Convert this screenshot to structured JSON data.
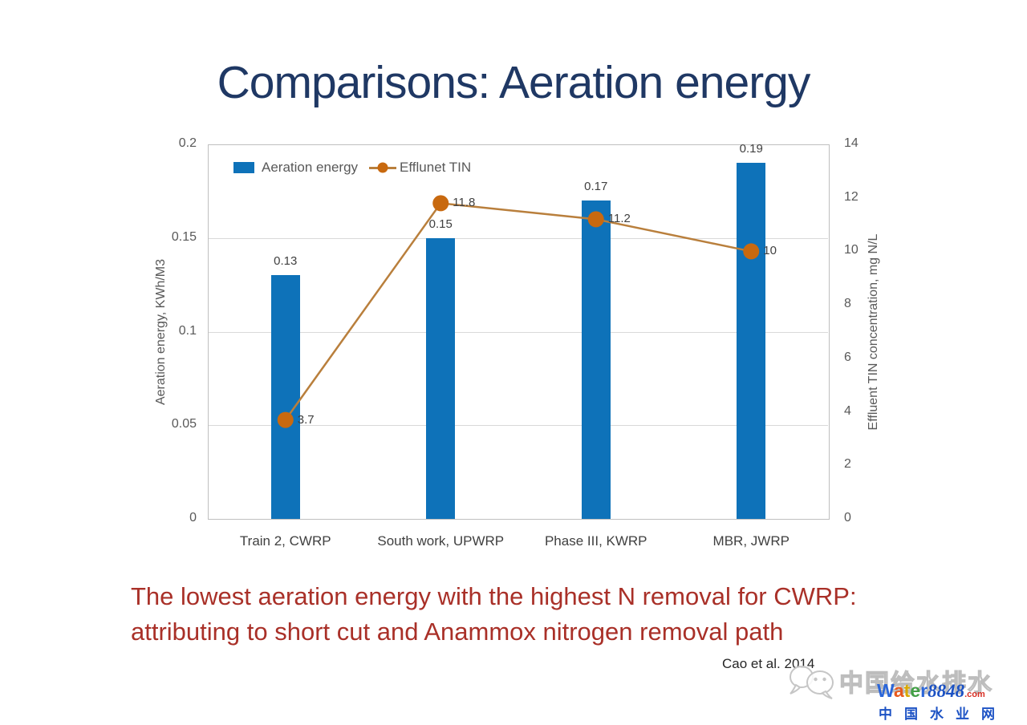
{
  "slide": {
    "title": "Comparisons: Aeration energy",
    "caption": {
      "line1": "The lowest aeration energy with the highest N removal for CWRP:",
      "line2": "attributing to short cut and Anammox nitrogen removal path"
    },
    "citation": "Cao et al. 2014"
  },
  "chart_data": {
    "type": "bar",
    "subtype": "combo bar + line with dual y-axes",
    "categories": [
      "Train 2, CWRP",
      "South work, UPWRP",
      "Phase III, KWRP",
      "MBR, JWRP"
    ],
    "series": [
      {
        "name": "Aeration energy",
        "type": "bar",
        "axis": "left",
        "values": [
          0.13,
          0.15,
          0.17,
          0.19
        ],
        "labels": [
          "0.13",
          "0.15",
          "0.17",
          "0.19"
        ],
        "color": "#0E72B9"
      },
      {
        "name": "Efflunet TIN",
        "type": "line",
        "axis": "right",
        "values": [
          3.7,
          11.8,
          11.2,
          10
        ],
        "labels": [
          "3.7",
          "11.8",
          "11.2",
          "10"
        ],
        "color": "#C8690F",
        "line_color": "#B97F3C"
      }
    ],
    "left_axis": {
      "title": "Aeration energy, KWh/M3",
      "min": 0,
      "max": 0.2,
      "tick_labels": [
        "0",
        "0.05",
        "0.1",
        "0.15",
        "0.2"
      ]
    },
    "right_axis": {
      "title": "Effluent TIN concentration, mg N/L",
      "min": 0,
      "max": 14,
      "tick_labels": [
        "0",
        "2",
        "4",
        "6",
        "8",
        "10",
        "12",
        "14"
      ]
    },
    "legend": [
      "Aeration energy",
      "Efflunet TIN"
    ],
    "legend_position": "top-left inside plot",
    "grid": true,
    "colors": {
      "grid": "#D9D9D9",
      "plot_border": "#BFBFBF",
      "tick_text": "#595959",
      "value_text": "#404040",
      "title_text": "#1F3864",
      "caption_text": "#A93028"
    }
  },
  "watermark": {
    "bubble_icon": "wechat-bubbles-icon",
    "outline_text": "中国给水排水",
    "brand": {
      "letters": [
        {
          "ch": "W",
          "color": "#2B66D9"
        },
        {
          "ch": "a",
          "color": "#E8591C"
        },
        {
          "ch": "t",
          "color": "#D8A800"
        },
        {
          "ch": "e",
          "color": "#43A047"
        },
        {
          "ch": "r",
          "color": "#2B66D9"
        }
      ],
      "number": "8848",
      "number_color": "#1C52C4",
      "tld": ".com",
      "tld_color": "#D93025"
    },
    "cn_blue_text": "中国水业网",
    "cn_blue_color": "#1C52C4"
  }
}
